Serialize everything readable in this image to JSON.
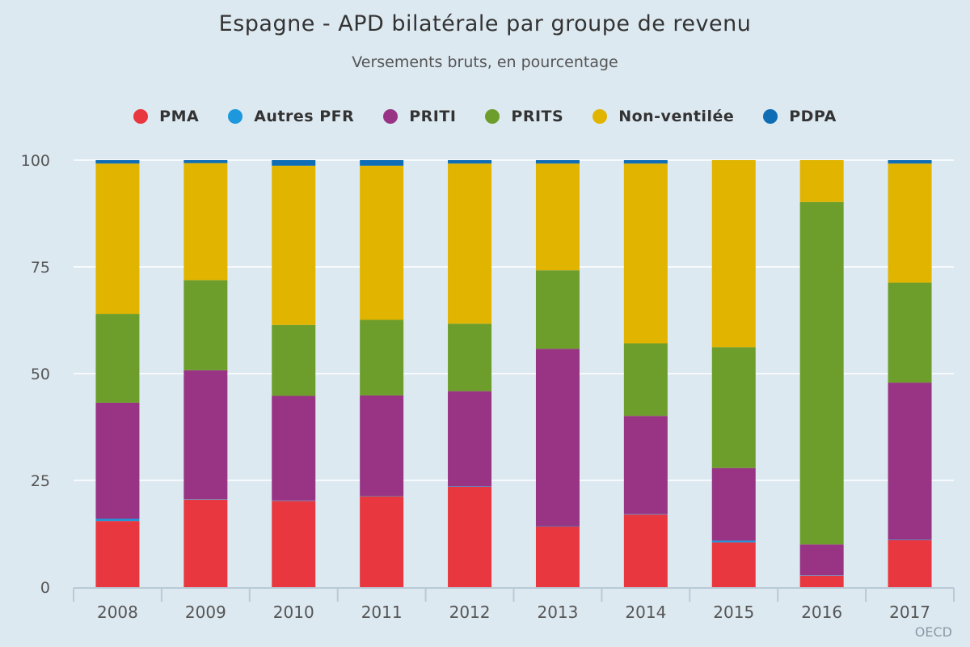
{
  "chart_data": {
    "type": "bar",
    "stacked": true,
    "title": "Espagne - APD bilatérale par groupe de revenu",
    "subtitle": "Versements bruts, en pourcentage",
    "categories": [
      "2008",
      "2009",
      "2010",
      "2011",
      "2012",
      "2013",
      "2014",
      "2015",
      "2016",
      "2017"
    ],
    "ylim": [
      0,
      100
    ],
    "yticks": [
      0,
      25,
      50,
      75,
      100
    ],
    "grid": true,
    "legend_position": "top-center",
    "series": [
      {
        "name": "PMA",
        "color": "#e8373f",
        "values": [
          15.5,
          20.5,
          20.2,
          21.3,
          23.5,
          14.2,
          17.0,
          10.5,
          2.7,
          11.0
        ]
      },
      {
        "name": "Autres PFR",
        "color": "#1e98dc",
        "values": [
          0.5,
          0.1,
          0.1,
          0.1,
          0.1,
          0.1,
          0.1,
          0.4,
          0.1,
          0.1
        ]
      },
      {
        "name": "PRITI",
        "color": "#983483",
        "values": [
          27.2,
          30.2,
          24.5,
          23.5,
          22.3,
          41.5,
          23.0,
          17.0,
          7.2,
          36.8
        ]
      },
      {
        "name": "PRITS",
        "color": "#6d9e2b",
        "values": [
          20.8,
          21.1,
          16.6,
          17.7,
          15.8,
          18.4,
          17.0,
          28.3,
          80.2,
          23.4
        ]
      },
      {
        "name": "Non-ventilée",
        "color": "#e1b400",
        "values": [
          35.2,
          27.4,
          37.3,
          36.1,
          37.5,
          25.0,
          42.1,
          43.8,
          9.8,
          27.9
        ]
      },
      {
        "name": "PDPA",
        "color": "#0e6db4",
        "values": [
          0.8,
          0.7,
          1.3,
          1.3,
          0.8,
          0.8,
          0.8,
          0.0,
          0.0,
          0.8
        ]
      }
    ]
  },
  "credit": "OECD"
}
